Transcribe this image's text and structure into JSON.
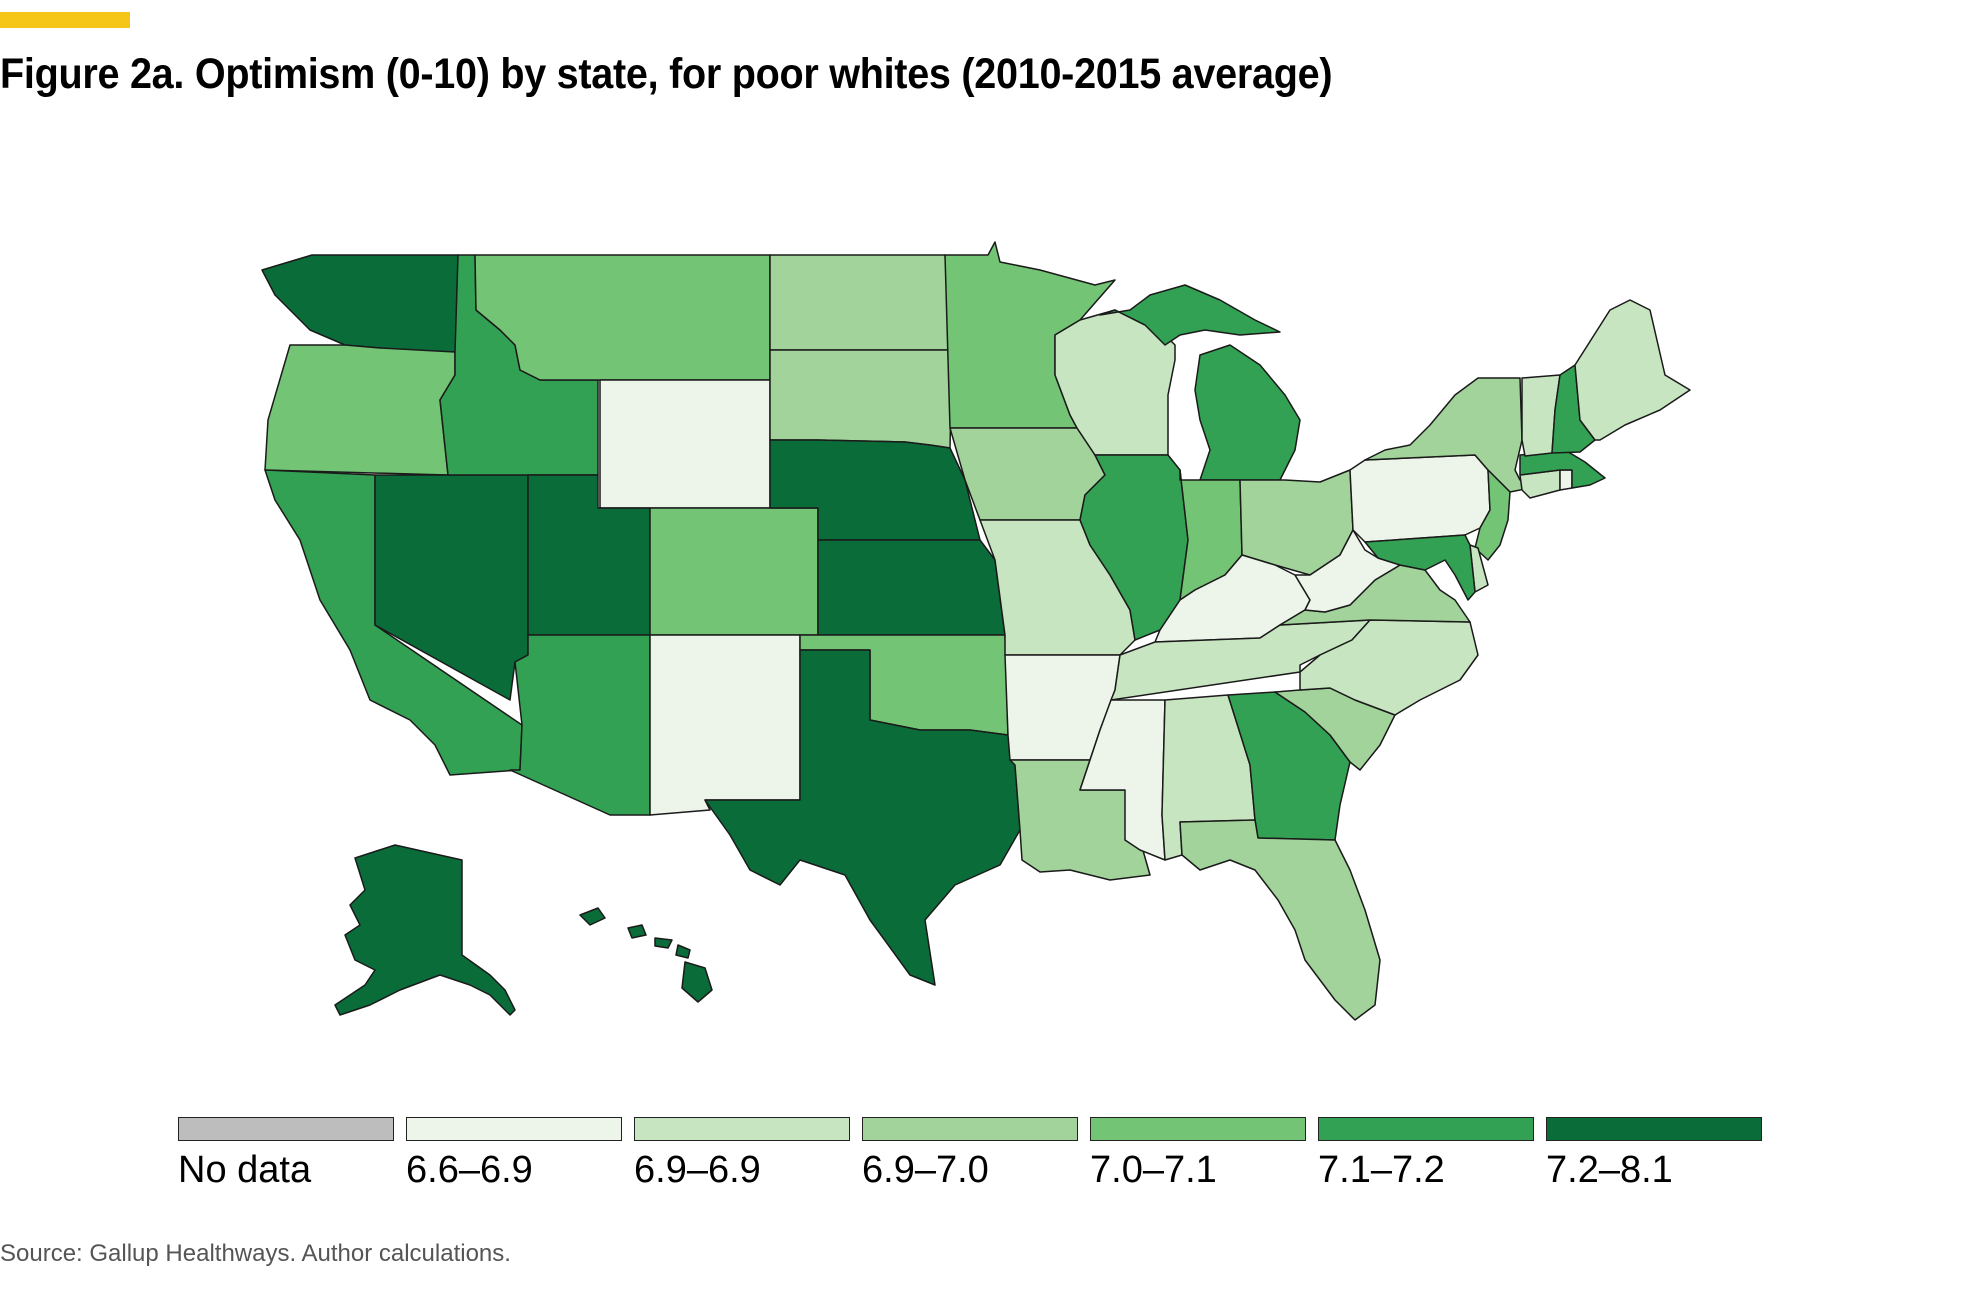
{
  "header": {
    "title": "Figure 2a. Optimism (0-10) by state, for poor whites (2010-2015 average)"
  },
  "palette": {
    "accent": "#F5C518",
    "no_data": "#BDBDBD",
    "c1": "#EDF5EA",
    "c2": "#C7E5C0",
    "c3": "#A1D39A",
    "c4": "#74C476",
    "c5": "#33A153",
    "c6": "#0A6D39",
    "border": "#1a1a1a"
  },
  "legend": {
    "items": [
      {
        "label": "No data",
        "class": "none"
      },
      {
        "label": "6.6–6.9",
        "class": "c1"
      },
      {
        "label": "6.9–6.9",
        "class": "c2"
      },
      {
        "label": "6.9–7.0",
        "class": "c3"
      },
      {
        "label": "7.0–7.1",
        "class": "c4"
      },
      {
        "label": "7.1–7.2",
        "class": "c5"
      },
      {
        "label": "7.2–8.1",
        "class": "c6"
      }
    ]
  },
  "map_data": {
    "measure": "Optimism (0-10), poor whites, 2010-2015 average",
    "states": {
      "WA": "c6",
      "OR": "c4",
      "CA": "c5",
      "NV": "c6",
      "ID": "c5",
      "MT": "c4",
      "WY": "c1",
      "UT": "c6",
      "AZ": "c5",
      "CO": "c4",
      "NM": "c1",
      "ND": "c3",
      "SD": "c3",
      "NE": "c6",
      "KS": "c6",
      "OK": "c4",
      "TX": "c6",
      "MN": "c4",
      "IA": "c3",
      "MO": "c2",
      "AR": "c1",
      "LA": "c3",
      "WI": "c2",
      "IL": "c5",
      "MI": "c5",
      "IN": "c4",
      "OH": "c3",
      "KY": "c1",
      "TN": "c2",
      "MS": "c1",
      "AL": "c2",
      "GA": "c5",
      "FL": "c3",
      "SC": "c3",
      "NC": "c2",
      "VA": "c3",
      "WV": "c1",
      "PA": "c1",
      "NY": "c3",
      "VT": "c2",
      "NH": "c5",
      "ME": "c2",
      "MA": "c5",
      "RI": "c1",
      "CT": "c2",
      "NJ": "c4",
      "DE": "c2",
      "MD": "c5",
      "AK": "c6",
      "HI": "c6"
    }
  },
  "footer": {
    "source": "Source: Gallup Healthways. Author calculations."
  }
}
